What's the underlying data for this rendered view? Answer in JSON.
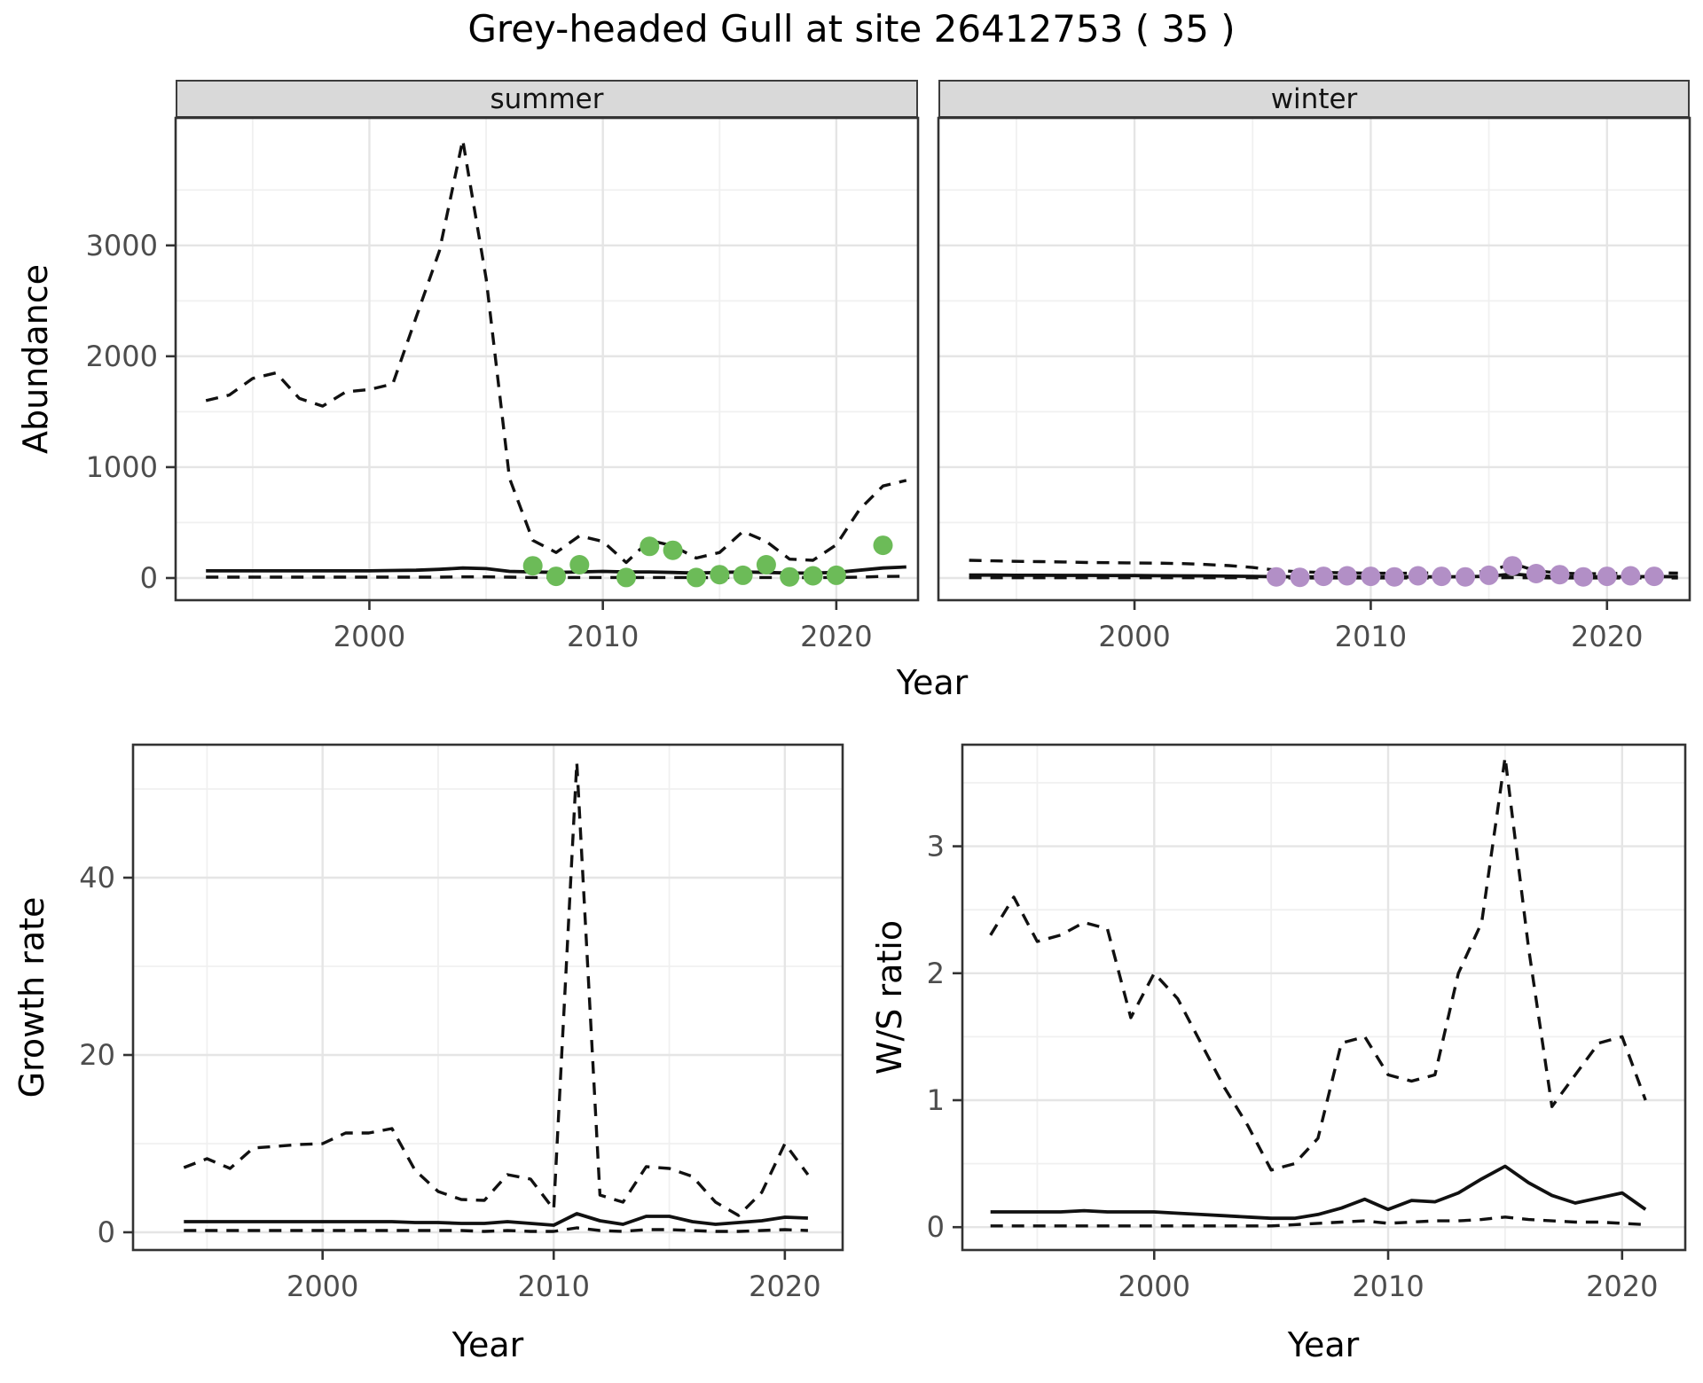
{
  "page": {
    "title": "Grey-headed Gull at site 26412753 ( 35 )"
  },
  "colors": {
    "observed_summer": "#6CBB58",
    "observed_winter": "#B28FC6",
    "line": "#111111",
    "grid_major": "#E5E5E5",
    "grid_minor": "#F0F0F0",
    "panel_border": "#333333",
    "tick": "#333333",
    "tick_label": "#4D4D4D",
    "strip_fill": "#D9D9D9"
  },
  "facets": {
    "summer_label": "summer",
    "winter_label": "winter"
  },
  "axis_titles": {
    "top_x": "Year",
    "top_y": "Abundance",
    "bottom_left_x": "Year",
    "bottom_left_y": "Growth rate",
    "bottom_right_x": "Year",
    "bottom_right_y": "W/S ratio"
  },
  "chart_data": [
    {
      "id": "abundance-summer",
      "type": "line",
      "facet": "summer",
      "ylabel": "Abundance",
      "xlabel": "Year",
      "xlim": [
        1991.7,
        2023.5
      ],
      "ylim": [
        -200,
        4150
      ],
      "xticks": [
        2000,
        2010,
        2020
      ],
      "xticks_minor": [
        1995,
        2005,
        2015
      ],
      "yticks": [
        0,
        1000,
        2000,
        3000
      ],
      "yticks_minor": [
        500,
        1500,
        2500,
        3500
      ],
      "show_y_labels": true,
      "series": [
        {
          "name": "upper-ci",
          "line": "dashed",
          "years": [
            1993,
            1994,
            1995,
            1996,
            1997,
            1998,
            1999,
            2000,
            2001,
            2002,
            2003,
            2004,
            2005,
            2006,
            2007,
            2008,
            2009,
            2010,
            2011,
            2012,
            2013,
            2014,
            2015,
            2016,
            2017,
            2018,
            2019,
            2020,
            2021,
            2022,
            2023
          ],
          "y": [
            1600,
            1650,
            1800,
            1850,
            1620,
            1550,
            1680,
            1700,
            1750,
            2350,
            2950,
            3950,
            2700,
            900,
            340,
            230,
            380,
            330,
            140,
            340,
            290,
            180,
            230,
            420,
            330,
            170,
            160,
            300,
            620,
            830,
            880
          ]
        },
        {
          "name": "lower-ci",
          "line": "dashed",
          "years": [
            1993,
            1994,
            1995,
            1996,
            1997,
            1998,
            1999,
            2000,
            2001,
            2002,
            2003,
            2004,
            2005,
            2006,
            2007,
            2008,
            2009,
            2010,
            2011,
            2012,
            2013,
            2014,
            2015,
            2016,
            2017,
            2018,
            2019,
            2020,
            2021,
            2022,
            2023
          ],
          "y": [
            8,
            8,
            8,
            8,
            8,
            8,
            8,
            8,
            8,
            8,
            8,
            10,
            10,
            8,
            5,
            4,
            5,
            5,
            4,
            5,
            5,
            4,
            4,
            5,
            5,
            4,
            4,
            5,
            8,
            14,
            16
          ]
        },
        {
          "name": "median",
          "line": "solid",
          "years": [
            1993,
            1994,
            1995,
            1996,
            1997,
            1998,
            1999,
            2000,
            2001,
            2002,
            2003,
            2004,
            2005,
            2006,
            2007,
            2008,
            2009,
            2010,
            2011,
            2012,
            2013,
            2014,
            2015,
            2016,
            2017,
            2018,
            2019,
            2020,
            2021,
            2022,
            2023
          ],
          "y": [
            65,
            65,
            65,
            65,
            65,
            65,
            65,
            65,
            68,
            70,
            78,
            90,
            85,
            60,
            55,
            50,
            55,
            60,
            55,
            55,
            50,
            45,
            50,
            55,
            50,
            45,
            45,
            50,
            70,
            90,
            100
          ]
        }
      ],
      "points": {
        "name": "observed",
        "color_key": "observed_summer",
        "years": [
          2007,
          2008,
          2009,
          2011,
          2012,
          2013,
          2014,
          2015,
          2016,
          2017,
          2018,
          2019,
          2020,
          2022
        ],
        "y": [
          110,
          15,
          120,
          5,
          285,
          250,
          5,
          30,
          25,
          120,
          10,
          20,
          25,
          295
        ]
      }
    },
    {
      "id": "abundance-winter",
      "type": "line",
      "facet": "winter",
      "ylabel": "Abundance",
      "xlabel": "Year",
      "xlim": [
        1991.7,
        2023.5
      ],
      "ylim": [
        -200,
        4150
      ],
      "xticks": [
        2000,
        2010,
        2020
      ],
      "xticks_minor": [
        1995,
        2005,
        2015
      ],
      "yticks": [
        0,
        1000,
        2000,
        3000
      ],
      "yticks_minor": [
        500,
        1500,
        2500,
        3500
      ],
      "show_y_labels": false,
      "series": [
        {
          "name": "upper-ci",
          "line": "dashed",
          "years": [
            1993,
            1994,
            1995,
            1996,
            1997,
            1998,
            1999,
            2000,
            2001,
            2002,
            2003,
            2004,
            2005,
            2006,
            2007,
            2008,
            2009,
            2010,
            2011,
            2012,
            2013,
            2014,
            2015,
            2016,
            2017,
            2018,
            2019,
            2020,
            2021,
            2022,
            2023
          ],
          "y": [
            160,
            155,
            150,
            148,
            145,
            140,
            138,
            136,
            134,
            130,
            122,
            112,
            95,
            70,
            55,
            50,
            46,
            44,
            42,
            44,
            46,
            50,
            60,
            130,
            65,
            45,
            38,
            40,
            42,
            46,
            44
          ]
        },
        {
          "name": "lower-ci",
          "line": "dashed",
          "years": [
            1993,
            1994,
            1995,
            1996,
            1997,
            1998,
            1999,
            2000,
            2001,
            2002,
            2003,
            2004,
            2005,
            2006,
            2007,
            2008,
            2009,
            2010,
            2011,
            2012,
            2013,
            2014,
            2015,
            2016,
            2017,
            2018,
            2019,
            2020,
            2021,
            2022,
            2023
          ],
          "y": [
            2,
            2,
            2,
            2,
            2,
            2,
            2,
            2,
            2,
            2,
            2,
            2,
            2,
            1,
            1,
            1,
            1,
            1,
            1,
            1,
            1,
            1,
            2,
            3,
            2,
            1,
            1,
            1,
            1,
            1,
            1
          ]
        },
        {
          "name": "median",
          "line": "solid",
          "years": [
            1993,
            1994,
            1995,
            1996,
            1997,
            1998,
            1999,
            2000,
            2001,
            2002,
            2003,
            2004,
            2005,
            2006,
            2007,
            2008,
            2009,
            2010,
            2011,
            2012,
            2013,
            2014,
            2015,
            2016,
            2017,
            2018,
            2019,
            2020,
            2021,
            2022,
            2023
          ],
          "y": [
            26,
            26,
            25,
            25,
            24,
            24,
            23,
            22,
            21,
            20,
            19,
            17,
            15,
            12,
            11,
            10,
            10,
            10,
            10,
            10,
            11,
            12,
            16,
            36,
            20,
            13,
            11,
            11,
            12,
            13,
            12
          ]
        }
      ],
      "points": {
        "name": "observed",
        "color_key": "observed_winter",
        "years": [
          2006,
          2007,
          2008,
          2009,
          2010,
          2011,
          2012,
          2013,
          2014,
          2015,
          2016,
          2017,
          2018,
          2019,
          2020,
          2021,
          2022
        ],
        "y": [
          10,
          6,
          15,
          20,
          15,
          10,
          20,
          15,
          10,
          25,
          110,
          40,
          30,
          10,
          15,
          20,
          15
        ]
      }
    },
    {
      "id": "growth-rate",
      "type": "line",
      "facet": null,
      "ylabel": "Growth rate",
      "xlabel": "Year",
      "xlim": [
        1991.8,
        2022.5
      ],
      "ylim": [
        -2,
        55
      ],
      "xticks": [
        2000,
        2010,
        2020
      ],
      "xticks_minor": [
        1995,
        2005,
        2015
      ],
      "yticks": [
        0,
        20,
        40
      ],
      "yticks_minor": [
        10,
        30,
        50
      ],
      "show_y_labels": true,
      "series": [
        {
          "name": "upper-ci",
          "line": "dashed",
          "years": [
            1994,
            1995,
            1996,
            1997,
            1998,
            1999,
            2000,
            2001,
            2002,
            2003,
            2004,
            2005,
            2006,
            2007,
            2008,
            2009,
            2010,
            2011,
            2012,
            2013,
            2014,
            2015,
            2016,
            2017,
            2018,
            2019,
            2020,
            2021
          ],
          "y": [
            7.3,
            8.3,
            7.2,
            9.5,
            9.7,
            9.9,
            10,
            11.2,
            11.2,
            11.7,
            7,
            4.6,
            3.7,
            3.6,
            6.5,
            6,
            2.6,
            53,
            4.2,
            3.4,
            7.4,
            7.2,
            6.3,
            3.4,
            1.9,
            4.5,
            10,
            6.5
          ]
        },
        {
          "name": "lower-ci",
          "line": "dashed",
          "years": [
            1994,
            1995,
            1996,
            1997,
            1998,
            1999,
            2000,
            2001,
            2002,
            2003,
            2004,
            2005,
            2006,
            2007,
            2008,
            2009,
            2010,
            2011,
            2012,
            2013,
            2014,
            2015,
            2016,
            2017,
            2018,
            2019,
            2020,
            2021
          ],
          "y": [
            0.2,
            0.2,
            0.2,
            0.2,
            0.2,
            0.2,
            0.2,
            0.2,
            0.2,
            0.2,
            0.2,
            0.2,
            0.2,
            0.1,
            0.2,
            0.1,
            0.1,
            0.5,
            0.2,
            0.1,
            0.3,
            0.3,
            0.2,
            0.1,
            0.1,
            0.2,
            0.3,
            0.2
          ]
        },
        {
          "name": "median",
          "line": "solid",
          "years": [
            1994,
            1995,
            1996,
            1997,
            1998,
            1999,
            2000,
            2001,
            2002,
            2003,
            2004,
            2005,
            2006,
            2007,
            2008,
            2009,
            2010,
            2011,
            2012,
            2013,
            2014,
            2015,
            2016,
            2017,
            2018,
            2019,
            2020,
            2021
          ],
          "y": [
            1.2,
            1.2,
            1.2,
            1.2,
            1.2,
            1.2,
            1.2,
            1.2,
            1.2,
            1.2,
            1.1,
            1.1,
            1,
            1,
            1.2,
            1,
            0.8,
            2.1,
            1.3,
            0.9,
            1.8,
            1.8,
            1.2,
            0.9,
            1.1,
            1.3,
            1.7,
            1.6
          ]
        }
      ],
      "points": null
    },
    {
      "id": "ws-ratio",
      "type": "line",
      "facet": null,
      "ylabel": "W/S ratio",
      "xlabel": "Year",
      "xlim": [
        1991.8,
        2022.7
      ],
      "ylim": [
        -0.18,
        3.8
      ],
      "xticks": [
        2000,
        2010,
        2020
      ],
      "xticks_minor": [
        1995,
        2005,
        2015
      ],
      "yticks": [
        0,
        1,
        2,
        3
      ],
      "yticks_minor": [
        0.5,
        1.5,
        2.5,
        3.5
      ],
      "show_y_labels": true,
      "series": [
        {
          "name": "upper-ci",
          "line": "dashed",
          "years": [
            1993,
            1994,
            1995,
            1996,
            1997,
            1998,
            1999,
            2000,
            2001,
            2002,
            2003,
            2004,
            2005,
            2006,
            2007,
            2008,
            2009,
            2010,
            2011,
            2012,
            2013,
            2014,
            2015,
            2016,
            2017,
            2018,
            2019,
            2020,
            2021
          ],
          "y": [
            2.3,
            2.6,
            2.25,
            2.3,
            2.4,
            2.35,
            1.65,
            2.0,
            1.8,
            1.45,
            1.1,
            0.8,
            0.45,
            0.5,
            0.7,
            1.45,
            1.5,
            1.2,
            1.15,
            1.2,
            2.0,
            2.4,
            3.7,
            2.2,
            0.95,
            1.2,
            1.45,
            1.5,
            1.0
          ]
        },
        {
          "name": "lower-ci",
          "line": "dashed",
          "years": [
            1993,
            1994,
            1995,
            1996,
            1997,
            1998,
            1999,
            2000,
            2001,
            2002,
            2003,
            2004,
            2005,
            2006,
            2007,
            2008,
            2009,
            2010,
            2011,
            2012,
            2013,
            2014,
            2015,
            2016,
            2017,
            2018,
            2019,
            2020,
            2021
          ],
          "y": [
            0.01,
            0.01,
            0.01,
            0.01,
            0.01,
            0.01,
            0.01,
            0.01,
            0.01,
            0.01,
            0.01,
            0.01,
            0.01,
            0.02,
            0.03,
            0.04,
            0.05,
            0.03,
            0.04,
            0.05,
            0.05,
            0.06,
            0.08,
            0.06,
            0.05,
            0.04,
            0.04,
            0.03,
            0.02
          ]
        },
        {
          "name": "median",
          "line": "solid",
          "years": [
            1993,
            1994,
            1995,
            1996,
            1997,
            1998,
            1999,
            2000,
            2001,
            2002,
            2003,
            2004,
            2005,
            2006,
            2007,
            2008,
            2009,
            2010,
            2011,
            2012,
            2013,
            2014,
            2015,
            2016,
            2017,
            2018,
            2019,
            2020,
            2021
          ],
          "y": [
            0.12,
            0.12,
            0.12,
            0.12,
            0.13,
            0.12,
            0.12,
            0.12,
            0.11,
            0.1,
            0.09,
            0.08,
            0.07,
            0.07,
            0.1,
            0.15,
            0.22,
            0.14,
            0.21,
            0.2,
            0.27,
            0.38,
            0.48,
            0.35,
            0.25,
            0.19,
            0.23,
            0.27,
            0.14
          ]
        }
      ],
      "points": null
    }
  ]
}
